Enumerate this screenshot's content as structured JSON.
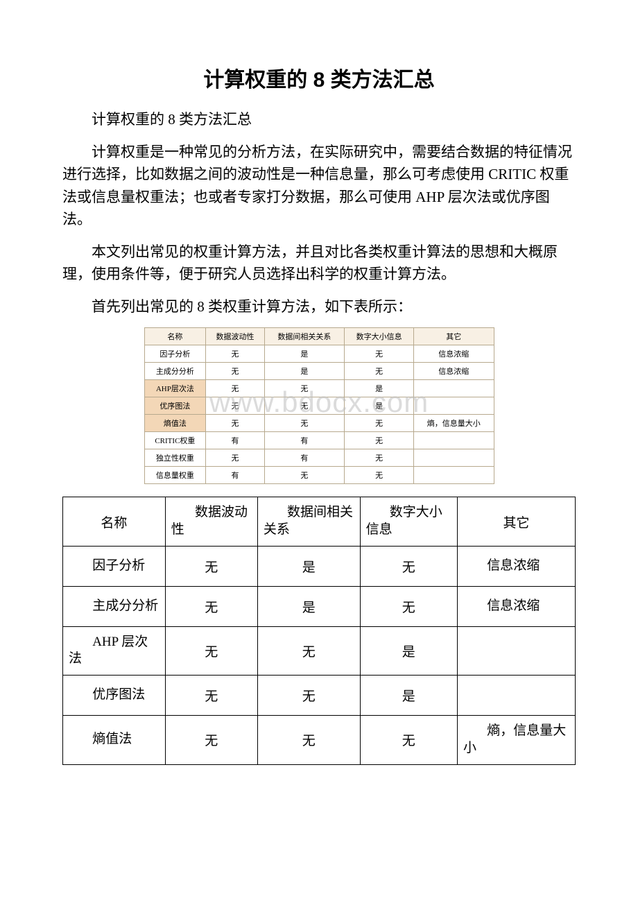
{
  "doc": {
    "title": "计算权重的 8 类方法汇总",
    "subtitle": "计算权重的 8 类方法汇总",
    "para1": "计算权重是一种常见的分析方法，在实际研究中，需要结合数据的特征情况进行选择，比如数据之间的波动性是一种信息量，那么可考虑使用 CRITIC 权重法或信息量权重法；也或者专家打分数据，那么可使用 AHP 层次法或优序图法。",
    "para2": "本文列出常见的权重计算方法，并且对比各类权重计算法的思想和大概原理，使用条件等，便于研究人员选择出科学的权重计算方法。",
    "para3": "首先列出常见的 8 类权重计算方法，如下表所示：",
    "watermark": "www.bdocx.com"
  },
  "table_small": {
    "type": "table",
    "border_color": "#b7a98e",
    "header_bg": "#f8f0e4",
    "highlight_bg": "#f3d7b7",
    "columns": [
      "名称",
      "数据波动性",
      "数据间相关关系",
      "数字大小信息",
      "其它"
    ],
    "rows": [
      {
        "cells": [
          "因子分析",
          "无",
          "是",
          "无",
          "信息浓缩"
        ],
        "hl": false
      },
      {
        "cells": [
          "主成分分析",
          "无",
          "是",
          "无",
          "信息浓缩"
        ],
        "hl": false
      },
      {
        "cells": [
          "AHP层次法",
          "无",
          "无",
          "是",
          ""
        ],
        "hl": true
      },
      {
        "cells": [
          "优序图法",
          "无",
          "无",
          "是",
          ""
        ],
        "hl": true
      },
      {
        "cells": [
          "熵值法",
          "无",
          "无",
          "无",
          "熵，信息量大小"
        ],
        "hl": true
      },
      {
        "cells": [
          "CRITIC权重",
          "有",
          "有",
          "无",
          ""
        ],
        "hl": false
      },
      {
        "cells": [
          "独立性权重",
          "无",
          "有",
          "无",
          ""
        ],
        "hl": false
      },
      {
        "cells": [
          "信息量权重",
          "有",
          "无",
          "无",
          ""
        ],
        "hl": false
      }
    ]
  },
  "table_big": {
    "type": "table",
    "border_color": "#000000",
    "columns": [
      {
        "label": "名称",
        "align": "center"
      },
      {
        "label": "数据波动性",
        "align": "indent"
      },
      {
        "label": "数据间相关关系",
        "align": "indent"
      },
      {
        "label": "数字大小信息",
        "align": "indent"
      },
      {
        "label": "其它",
        "align": "center"
      }
    ],
    "rows": [
      {
        "name": "因子分析",
        "a": "无",
        "b": "是",
        "c": "无",
        "d": "信息浓缩",
        "d_style": "indent"
      },
      {
        "name": "主成分分析",
        "a": "无",
        "b": "是",
        "c": "无",
        "d": "信息浓缩",
        "d_style": "indent"
      },
      {
        "name": "AHP 层次法",
        "a": "无",
        "b": "无",
        "c": "是",
        "d": "",
        "d_style": "center"
      },
      {
        "name": "优序图法",
        "a": "无",
        "b": "无",
        "c": "是",
        "d": "",
        "d_style": "center"
      },
      {
        "name": "熵值法",
        "a": "无",
        "b": "无",
        "c": "无",
        "d": "熵，信息量大小",
        "d_style": "indent"
      }
    ]
  }
}
